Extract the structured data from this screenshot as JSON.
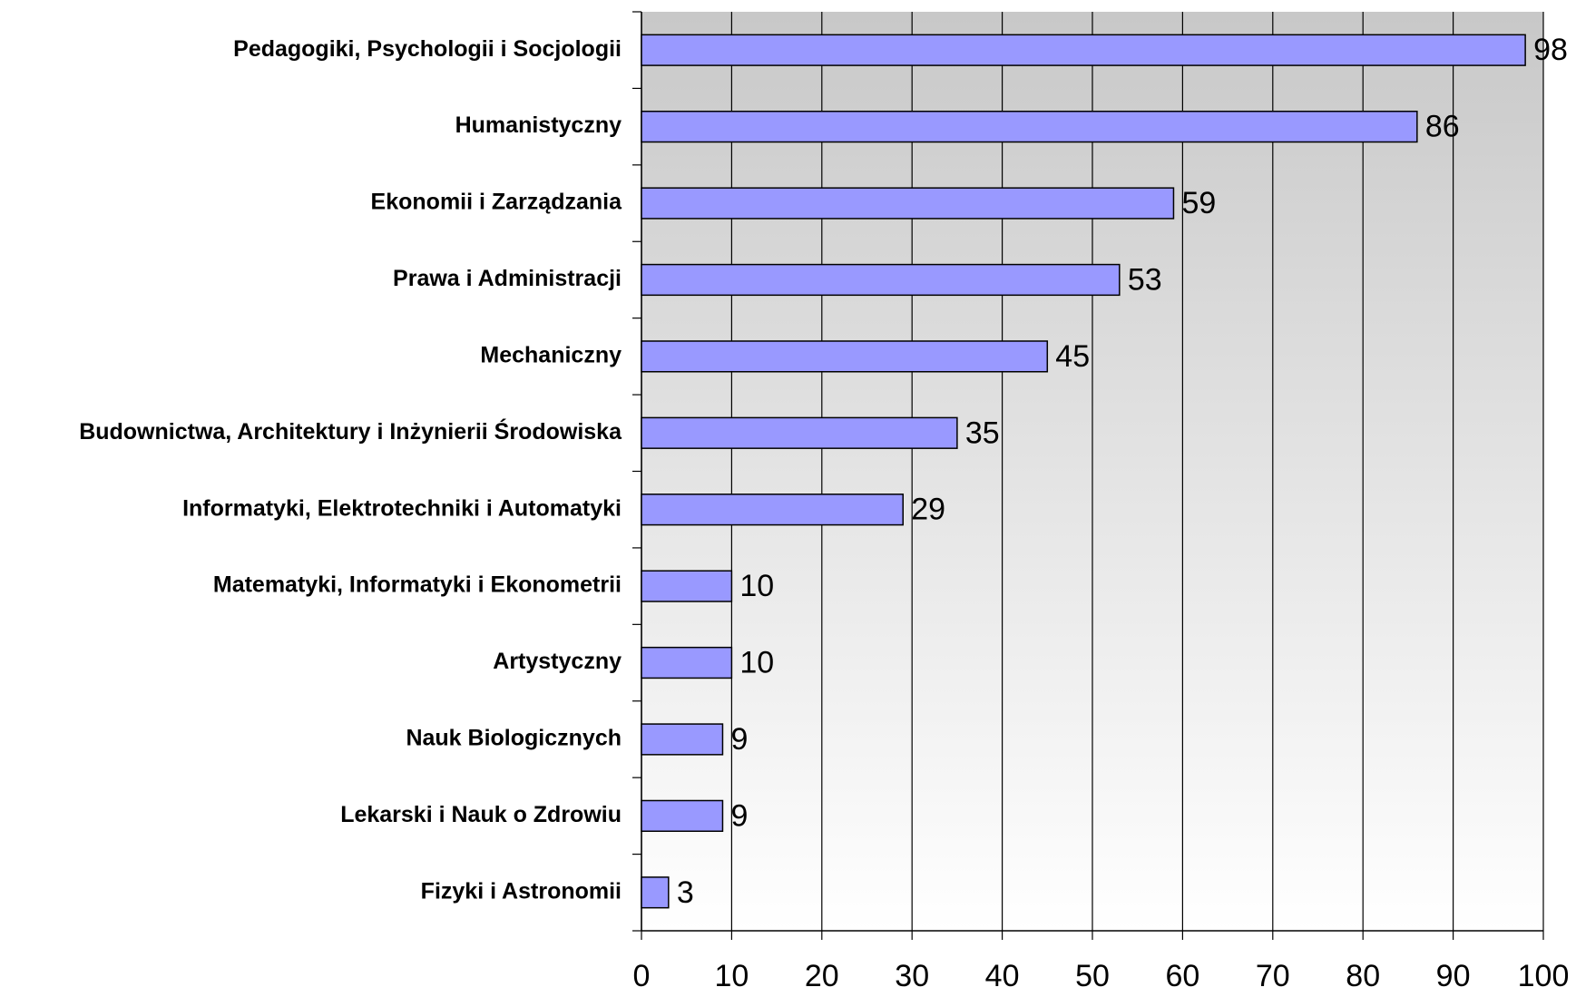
{
  "chart_data": {
    "type": "bar",
    "orientation": "horizontal",
    "categories": [
      "Pedagogiki, Psychologii i Socjologii",
      "Humanistyczny",
      "Ekonomii i Zarządzania",
      "Prawa i Administracji",
      "Mechaniczny",
      "Budownictwa, Architektury i Inżynierii Środowiska",
      "Informatyki, Elektrotechniki i Automatyki",
      "Matematyki, Informatyki i Ekonometrii",
      "Artystyczny",
      "Nauk Biologicznych",
      "Lekarski i Nauk o Zdrowiu",
      "Fizyki i Astronomii"
    ],
    "values": [
      98,
      86,
      59,
      53,
      45,
      35,
      29,
      10,
      10,
      9,
      9,
      3
    ],
    "color": "#9999ff",
    "xlim": [
      0,
      100
    ],
    "xticks": [
      0,
      10,
      20,
      30,
      40,
      50,
      60,
      70,
      80,
      90,
      100
    ],
    "grid": true
  }
}
